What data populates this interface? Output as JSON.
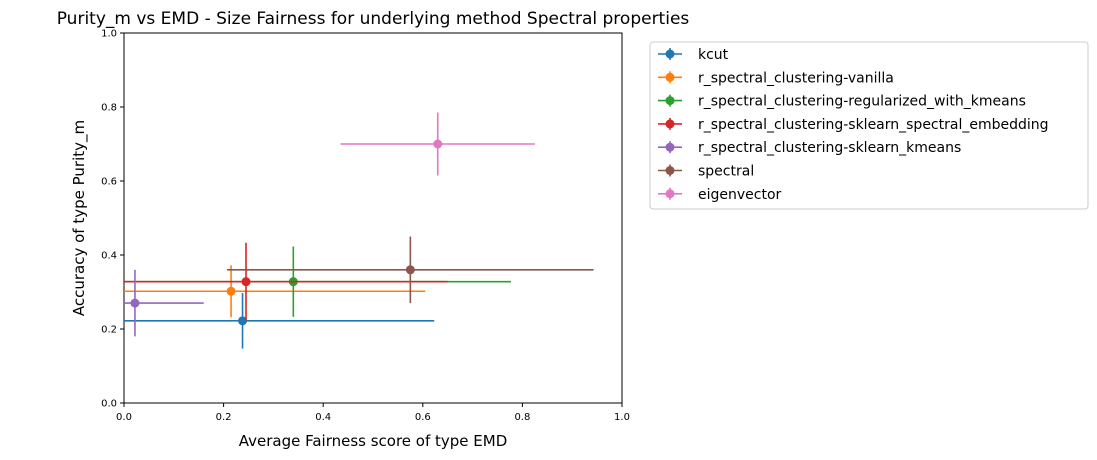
{
  "chart_data": {
    "type": "scatter",
    "title": "Purity_m vs EMD - Size Fairness for underlying method Spectral properties",
    "xlabel": "Average Fairness score of type EMD",
    "ylabel": "Accuracy of type Purity_m",
    "xlim": [
      0.0,
      1.0
    ],
    "ylim": [
      0.0,
      1.0
    ],
    "xticks": [
      "0.0",
      "0.2",
      "0.4",
      "0.6",
      "0.8",
      "1.0"
    ],
    "yticks": [
      "0.0",
      "0.2",
      "0.4",
      "0.6",
      "0.8",
      "1.0"
    ],
    "grid": false,
    "legend_position": "outside-right",
    "series": [
      {
        "name": "kcut",
        "color": "#1f77b4",
        "x": 0.238,
        "y": 0.222,
        "xerr": 0.385,
        "yerr": 0.075
      },
      {
        "name": "r_spectral_clustering-vanilla",
        "color": "#ff7f0e",
        "x": 0.215,
        "y": 0.302,
        "xerr": 0.39,
        "yerr": 0.07
      },
      {
        "name": "r_spectral_clustering-regularized_with_kmeans",
        "color": "#2ca02c",
        "x": 0.34,
        "y": 0.328,
        "xerr": 0.437,
        "yerr": 0.095
      },
      {
        "name": "r_spectral_clustering-sklearn_spectral_embedding",
        "color": "#d62728",
        "x": 0.245,
        "y": 0.328,
        "xerr": 0.405,
        "yerr": 0.105
      },
      {
        "name": "r_spectral_clustering-sklearn_kmeans",
        "color": "#9467bd",
        "x": 0.022,
        "y": 0.27,
        "xerr": 0.138,
        "yerr": 0.09
      },
      {
        "name": "spectral",
        "color": "#8c564b",
        "x": 0.575,
        "y": 0.36,
        "xerr": 0.368,
        "yerr": 0.09
      },
      {
        "name": "eigenvector",
        "color": "#e377c2",
        "x": 0.63,
        "y": 0.7,
        "xerr": 0.195,
        "yerr": 0.085
      }
    ]
  }
}
